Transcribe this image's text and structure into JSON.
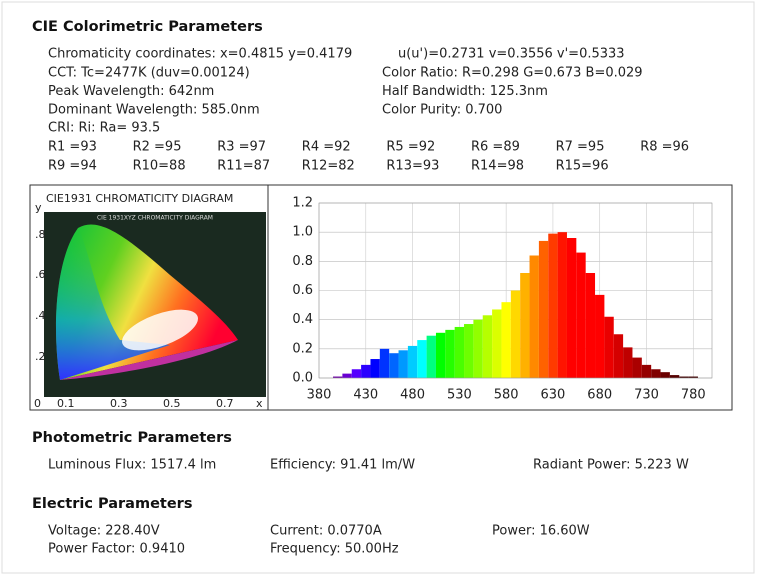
{
  "colorimetric": {
    "title": "CIE Colorimetric Parameters",
    "chromaticity": "Chromaticity coordinates: x=0.4815 y=0.4179",
    "uv": "u(u')=0.2731 v=0.3556 v'=0.5333",
    "rows": [
      [
        "CCT: Tc=2477K (duv=0.00124)",
        "Color Ratio: R=0.298  G=0.673  B=0.029"
      ],
      [
        "Peak Wavelength: 642nm",
        "Half Bandwidth: 125.3nm"
      ],
      [
        "Dominant Wavelength: 585.0nm",
        "Color Purity: 0.700"
      ]
    ],
    "cri": "CRI: Ri: Ra= 93.5",
    "r_values": [
      [
        "R1 =93",
        "R2 =95",
        "R3 =97",
        "R4 =92",
        "R5 =92",
        "R6 =89",
        "R7 =95",
        "R8 =96"
      ],
      [
        "R9 =94",
        "R10=88",
        "R11=87",
        "R12=82",
        "R13=93",
        "R14=98",
        "R15=96"
      ]
    ]
  },
  "cie_diagram": {
    "title": "CIE1931 CHROMATICITY DIAGRAM",
    "inner_title": "CIE 1931XYZ CHROMATICITY DIAGRAM",
    "y_labels": [
      "y",
      ".8",
      ".6",
      ".4",
      ".2"
    ],
    "x_labels": [
      "0",
      "0.1",
      "0.3",
      "0.5",
      "0.7",
      "x"
    ]
  },
  "spectrum": {
    "x": [
      380,
      390,
      400,
      410,
      420,
      430,
      440,
      450,
      460,
      470,
      480,
      490,
      500,
      510,
      520,
      530,
      540,
      550,
      560,
      570,
      580,
      590,
      600,
      610,
      620,
      630,
      640,
      650,
      660,
      670,
      680,
      690,
      700,
      710,
      720,
      730,
      740,
      750,
      760,
      770,
      780
    ],
    "values": [
      0.0,
      0.0,
      0.01,
      0.03,
      0.06,
      0.09,
      0.13,
      0.2,
      0.17,
      0.19,
      0.22,
      0.26,
      0.29,
      0.31,
      0.33,
      0.35,
      0.37,
      0.4,
      0.43,
      0.47,
      0.52,
      0.6,
      0.72,
      0.84,
      0.94,
      0.99,
      1.0,
      0.96,
      0.86,
      0.72,
      0.57,
      0.42,
      0.3,
      0.21,
      0.14,
      0.09,
      0.06,
      0.04,
      0.02,
      0.01,
      0.01
    ],
    "xlim": [
      380,
      800
    ],
    "ylim": [
      0,
      1.2
    ],
    "xticks": [
      380,
      430,
      480,
      530,
      580,
      630,
      680,
      730,
      780
    ],
    "yticks": [
      {
        "value": 0,
        "label": "0.0"
      },
      0.2,
      0.4,
      0.6,
      0.8,
      {
        "value": 1,
        "label": "1.0"
      },
      1.2
    ]
  },
  "photometric": {
    "title": "Photometric Parameters",
    "items": [
      "Luminous Flux: 1517.4 lm",
      "Efficiency: 91.41 lm/W",
      "Radiant Power: 5.223 W"
    ]
  },
  "electric": {
    "title": "Electric Parameters",
    "items": [
      [
        "Voltage: 228.40V",
        "Current: 0.0770A",
        "Power: 16.60W"
      ],
      [
        "Power Factor: 0.9410",
        "Frequency: 50.00Hz"
      ]
    ]
  }
}
